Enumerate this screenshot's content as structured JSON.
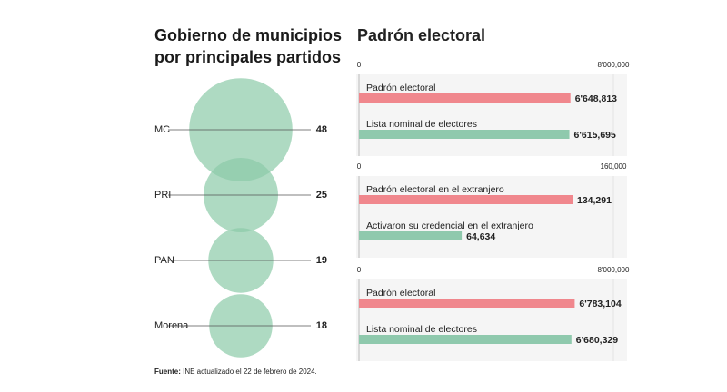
{
  "chart_data": [
    {
      "type": "bubble",
      "title": "Gobierno de municipios por principales partidos",
      "categories": [
        "MC",
        "PRI",
        "PAN",
        "Morena"
      ],
      "values": [
        48,
        25,
        19,
        18
      ],
      "color": "#8ccaa8"
    },
    {
      "type": "bar",
      "title": "Padrón electoral",
      "categories": [
        "Padrón electoral",
        "Lista nominal de electores"
      ],
      "values": [
        6648813,
        6615695
      ],
      "value_labels": [
        "6'648,813",
        "6'615,695"
      ],
      "colors": [
        "#f0878d",
        "#8fc9ad"
      ],
      "xlim": [
        0,
        8000000
      ],
      "xticks": [
        0,
        {
          "value": 8000000,
          "label": "8'000,000"
        }
      ]
    },
    {
      "type": "bar",
      "categories": [
        "Padrón electoral en el extranjero",
        "Activaron su  credencial en el extranjero"
      ],
      "values": [
        134291,
        64634
      ],
      "value_labels": [
        "134,291",
        "64,634"
      ],
      "colors": [
        "#f0878d",
        "#8fc9ad"
      ],
      "xlim": [
        0,
        160000
      ],
      "xticks": [
        0,
        {
          "value": 160000,
          "label": "160,000"
        }
      ]
    },
    {
      "type": "bar",
      "categories": [
        "Padrón electoral",
        "Lista nominal de electores"
      ],
      "values": [
        6783104,
        6680329
      ],
      "value_labels": [
        "6'783,104",
        "6'680,329"
      ],
      "colors": [
        "#f0878d",
        "#8fc9ad"
      ],
      "xlim": [
        0,
        8000000
      ],
      "xticks": [
        0,
        {
          "value": 8000000,
          "label": "8'000,000"
        }
      ]
    }
  ],
  "footer": {
    "label": "Fuente:",
    "text": "INE actualizado el 22 de febrero de 2024."
  }
}
